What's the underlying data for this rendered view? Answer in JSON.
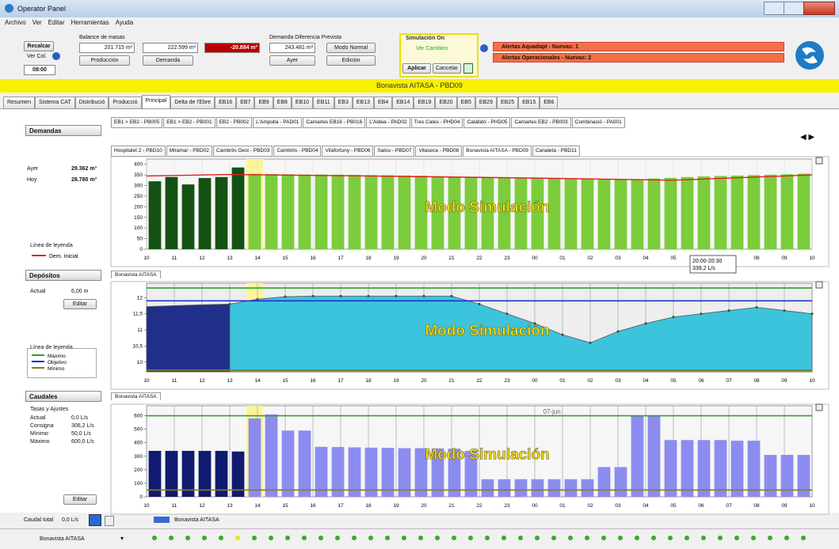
{
  "window": {
    "title": "Operator Panel"
  },
  "menu": [
    "Archivo",
    "Ver",
    "Editar",
    "Herramientas",
    "Ayuda"
  ],
  "toolbar": {
    "recalc": "Recalcar",
    "ver_col": "Ver Col.",
    "time": "08:00",
    "balance_title": "Balance de masas",
    "production": "201.715 m³",
    "demand": "222.599 m³",
    "difference": "-20.884 m³",
    "production_btn": "Producción",
    "demand_btn": "Demanda",
    "forecast_title": "Demanda Diferencia Prevista",
    "forecast": "243.481 m³",
    "mode": "Modo Normal",
    "yesterday_btn": "Ayer",
    "edit_btn": "Edición",
    "simulation_title": "Simulación On",
    "view_changes": "Ver Cambios",
    "apply": "Aplicar",
    "cancel": "Cancelar",
    "alerts_aquadapt": "Alertas Aquadapt - Nuevas: 1",
    "alerts_operational": "Alertas Operacionales - Nuevas: 2"
  },
  "banner": "Bonavista AITASA - PBD09",
  "tabs": [
    "Resumen",
    "Sistema CAT",
    "Distribució",
    "Producció",
    "Principal",
    "Delta de l'Ebre",
    "EB16",
    "EB7",
    "EB9",
    "EB8",
    "EB10",
    "EB11",
    "EB3",
    "EB13",
    "EB4",
    "EB14",
    "EB19",
    "EB20",
    "EB5",
    "EB29",
    "EB25",
    "EB15",
    "EB6"
  ],
  "active_tab": 4,
  "subtabs_row1": [
    "EB1 > EB2 - PB005",
    "EB1 > EB2 - PB001",
    "EB2 - PB002",
    "L'Ampolla - PAD01",
    "Camarles EB16 - PB016",
    "L'Aldea - PAD02",
    "Tres Cales - PHD04",
    "Calafató - PHD05",
    "Camarles EB2 - PB003",
    "Combinació - PA001"
  ],
  "subtabs_row2": [
    "Hospitalet 2 - PBD10",
    "Miramar - PBD02",
    "Cambrils Oest - PBD03",
    "Cambrils - PBD04",
    "Vilafortuny - PBD06",
    "Salou - PBD07",
    "Vilaseca - PBD08",
    "Bonavista AITASA - PBD09",
    "Canaleta - PBD11"
  ],
  "active_subtab": 7,
  "panels": {
    "demandas": {
      "title": "Demandas",
      "rows": [
        [
          "Ayer",
          "29.362 m³"
        ],
        [
          "Hoy",
          "28.780 m³"
        ]
      ],
      "legend_title": "Línea de leyenda"
    },
    "depositos": {
      "title": "Depósitos",
      "actual_label": "Actual",
      "actual": "6,00 m",
      "edit": "Editar",
      "legend_title": "Línea de leyenda"
    },
    "caudales": {
      "title": "Caudales",
      "subtitle": "Tasas y Ajustes",
      "rows": [
        [
          "Actual",
          "0,0 L/s"
        ],
        [
          "Consigna",
          "306,2 L/s"
        ],
        [
          "Mínimo",
          "50,0 L/s"
        ],
        [
          "Máximo",
          "600,0 L/s"
        ]
      ],
      "edit": "Editar"
    }
  },
  "chart_tabs": [
    "Bonavista AITASA",
    "Bonavista AITASA"
  ],
  "footer": {
    "total_label": "Caudal total",
    "total": "0,0 L/s",
    "legend": "Bonavista AITASA",
    "selector": "Bonavista AITASA"
  },
  "chart_data": [
    {
      "type": "bar",
      "annotation": "Modo Simulación",
      "tooltip": [
        "20:00-20:30",
        "339,2 L/s"
      ],
      "xlim": [
        0,
        24
      ],
      "xticks": [
        {
          "value": 0,
          "label": "10"
        },
        {
          "value": 1,
          "label": "11"
        },
        {
          "value": 2,
          "label": "12"
        },
        {
          "value": 3,
          "label": "13"
        },
        {
          "value": 4,
          "label": "14"
        },
        {
          "value": 5,
          "label": "15"
        },
        {
          "value": 6,
          "label": "16"
        },
        {
          "value": 7,
          "label": "17"
        },
        {
          "value": 8,
          "label": "18"
        },
        {
          "value": 9,
          "label": "19"
        },
        {
          "value": 10,
          "label": "20"
        },
        {
          "value": 11,
          "label": "21"
        },
        {
          "value": 12,
          "label": "22"
        },
        {
          "value": 13,
          "label": "23"
        },
        {
          "value": 14,
          "label": "00"
        },
        {
          "value": 15,
          "label": "01"
        },
        {
          "value": 16,
          "label": "02"
        },
        {
          "value": 17,
          "label": "03"
        },
        {
          "value": 18,
          "label": "04"
        },
        {
          "value": 19,
          "label": "05"
        },
        {
          "value": 20,
          "label": "06"
        },
        {
          "value": 21,
          "label": "07"
        },
        {
          "value": 22,
          "label": "08"
        },
        {
          "value": 23,
          "label": "09"
        },
        {
          "value": 24,
          "label": "10"
        }
      ],
      "ylim": [
        0,
        410
      ],
      "yticks": [
        0,
        50,
        100,
        150,
        200,
        250,
        300,
        350,
        400
      ],
      "series": [
        {
          "color": "#145214",
          "x": [
            0.3,
            0.9,
            1.5,
            2.1,
            2.7,
            3.3
          ],
          "values": [
            320,
            340,
            305,
            335,
            340,
            385
          ]
        },
        {
          "color": "#7ccc3c",
          "x": [
            3.9,
            4.5,
            5.1,
            5.7,
            6.3,
            6.9,
            7.5,
            8.1,
            8.7,
            9.3,
            9.9,
            10.5,
            11.1,
            11.7,
            12.3,
            12.9,
            13.5,
            14.1,
            14.7,
            15.3,
            15.9,
            16.5,
            17.1,
            17.7,
            18.3,
            18.9,
            19.5,
            20.1,
            20.7,
            21.3,
            21.9,
            22.5,
            23.1,
            23.7
          ],
          "values": [
            355,
            354,
            353,
            352,
            352,
            351,
            350,
            349,
            348,
            347,
            346,
            344,
            342,
            340,
            338,
            336,
            334,
            333,
            332,
            331,
            330,
            329,
            328,
            330,
            333,
            336,
            340,
            343,
            345,
            347,
            349,
            351,
            353,
            356
          ]
        },
        {
          "type": "line",
          "name": "Dem. Inicial",
          "color": "#e02020",
          "x": [
            0,
            3,
            8,
            14,
            19,
            24
          ],
          "values": [
            345,
            352,
            345,
            335,
            325,
            350
          ]
        }
      ]
    },
    {
      "type": "area",
      "annotation": "Modo Simulación",
      "xlim": [
        0,
        24
      ],
      "xticks": [
        {
          "value": 0,
          "label": "10"
        },
        {
          "value": 1,
          "label": "11"
        },
        {
          "value": 2,
          "label": "12"
        },
        {
          "value": 3,
          "label": "13"
        },
        {
          "value": 4,
          "label": "14"
        },
        {
          "value": 5,
          "label": "15"
        },
        {
          "value": 6,
          "label": "16"
        },
        {
          "value": 7,
          "label": "17"
        },
        {
          "value": 8,
          "label": "18"
        },
        {
          "value": 9,
          "label": "19"
        },
        {
          "value": 10,
          "label": "20"
        },
        {
          "value": 11,
          "label": "21"
        },
        {
          "value": 12,
          "label": "22"
        },
        {
          "value": 13,
          "label": "23"
        },
        {
          "value": 14,
          "label": "00"
        },
        {
          "value": 15,
          "label": "01"
        },
        {
          "value": 16,
          "label": "02"
        },
        {
          "value": 17,
          "label": "03"
        },
        {
          "value": 18,
          "label": "04"
        },
        {
          "value": 19,
          "label": "05"
        },
        {
          "value": 20,
          "label": "06"
        },
        {
          "value": 21,
          "label": "07"
        },
        {
          "value": 22,
          "label": "08"
        },
        {
          "value": 23,
          "label": "09"
        },
        {
          "value": 24,
          "label": "10"
        }
      ],
      "ylim": [
        9.7,
        12.35
      ],
      "yticks": [
        10,
        {
          "value": 10.5,
          "label": "10,5"
        },
        11,
        {
          "value": 11.5,
          "label": "11,5"
        },
        12
      ],
      "series": [
        {
          "color": "#1f2f8a",
          "x": [
            0,
            1,
            2,
            3
          ],
          "values": [
            11.72,
            11.75,
            11.78,
            11.8
          ]
        },
        {
          "color": "#3cc4dc",
          "markers": true,
          "x": [
            3,
            4,
            5,
            6,
            7,
            8,
            9,
            10,
            11,
            12,
            13,
            14,
            15,
            16,
            17,
            18,
            19,
            20,
            21,
            22,
            23,
            24
          ],
          "values": [
            11.8,
            11.95,
            12.03,
            12.05,
            12.05,
            12.05,
            12.05,
            12.05,
            12.05,
            11.8,
            11.5,
            11.2,
            10.85,
            10.6,
            10.95,
            11.2,
            11.4,
            11.5,
            11.6,
            11.7,
            11.6,
            11.5
          ]
        }
      ],
      "reference_lines": [
        {
          "name": "Máximo",
          "color": "#2ca02c",
          "value": 12.3
        },
        {
          "name": "Objetivo",
          "color": "#2030d0",
          "value": 11.9
        },
        {
          "name": "Mínimo",
          "color": "#8a7a20",
          "value": 9.75
        }
      ]
    },
    {
      "type": "bar",
      "annotation": "Modo Simulación",
      "date_label": "07-jun",
      "xlim": [
        0,
        24
      ],
      "xticks": [
        {
          "value": 0,
          "label": "10"
        },
        {
          "value": 1,
          "label": "11"
        },
        {
          "value": 2,
          "label": "12"
        },
        {
          "value": 3,
          "label": "13"
        },
        {
          "value": 4,
          "label": "14"
        },
        {
          "value": 5,
          "label": "15"
        },
        {
          "value": 6,
          "label": "16"
        },
        {
          "value": 7,
          "label": "17"
        },
        {
          "value": 8,
          "label": "18"
        },
        {
          "value": 9,
          "label": "19"
        },
        {
          "value": 10,
          "label": "20"
        },
        {
          "value": 11,
          "label": "21"
        },
        {
          "value": 12,
          "label": "22"
        },
        {
          "value": 13,
          "label": "23"
        },
        {
          "value": 14,
          "label": "00"
        },
        {
          "value": 15,
          "label": "01"
        },
        {
          "value": 16,
          "label": "02"
        },
        {
          "value": 17,
          "label": "03"
        },
        {
          "value": 18,
          "label": "04"
        },
        {
          "value": 19,
          "label": "05"
        },
        {
          "value": 20,
          "label": "06"
        },
        {
          "value": 21,
          "label": "07"
        },
        {
          "value": 22,
          "label": "08"
        },
        {
          "value": 23,
          "label": "09"
        },
        {
          "value": 24,
          "label": "10"
        }
      ],
      "ylim": [
        0,
        650
      ],
      "yticks": [
        0,
        100,
        200,
        300,
        400,
        500,
        600
      ],
      "series": [
        {
          "color": "#101a6e",
          "x": [
            0.3,
            0.9,
            1.5,
            2.1,
            2.7,
            3.3
          ],
          "values": [
            340,
            340,
            340,
            340,
            340,
            335
          ]
        },
        {
          "color": "#8c8cf0",
          "x": [
            3.9,
            4.5,
            5.1,
            5.7,
            6.3,
            6.9,
            7.5,
            8.1,
            8.7,
            9.3,
            9.9,
            10.5,
            11.1,
            11.7,
            12.3,
            12.9,
            13.5,
            14.1,
            14.7,
            15.3,
            15.9,
            16.5,
            17.1,
            17.7,
            18.3,
            18.9,
            19.5,
            20.1,
            20.7,
            21.3,
            21.9,
            22.5,
            23.1,
            23.7
          ],
          "values": [
            580,
            610,
            490,
            490,
            370,
            368,
            366,
            364,
            362,
            360,
            360,
            358,
            356,
            340,
            130,
            130,
            130,
            130,
            130,
            130,
            130,
            220,
            220,
            600,
            600,
            420,
            420,
            420,
            420,
            415,
            415,
            310,
            310,
            310
          ]
        }
      ],
      "reference_lines": [
        {
          "color": "#3a9a3a",
          "value": 600
        },
        {
          "color": "#8a7a20",
          "value": 50
        }
      ]
    }
  ]
}
